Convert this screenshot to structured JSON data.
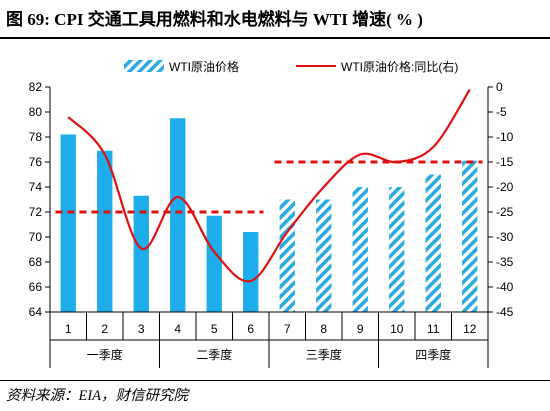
{
  "header": {
    "title": "图 69: CPI 交通工具用燃料和水电燃料与 WTI 增速( % )"
  },
  "footer": {
    "source": "资料来源：EIA，财信研究院"
  },
  "colors": {
    "bar_solid": "#1CADEA",
    "bar_hatch": "#29ABE2",
    "line": "#E01010",
    "dashed": "#E01010",
    "axis": "#000000"
  },
  "chart_data": {
    "type": "bar",
    "categories": [
      "1",
      "2",
      "3",
      "4",
      "5",
      "6",
      "7",
      "8",
      "9",
      "10",
      "11",
      "12"
    ],
    "groups": [
      {
        "label": "一季度",
        "from": 1,
        "to": 3
      },
      {
        "label": "二季度",
        "from": 4,
        "to": 6
      },
      {
        "label": "三季度",
        "from": 7,
        "to": 9
      },
      {
        "label": "四季度",
        "from": 10,
        "to": 12
      }
    ],
    "series": [
      {
        "name": "WTI原油价格",
        "type": "bar",
        "axis": "left",
        "values": [
          78.2,
          76.9,
          73.3,
          79.5,
          71.7,
          70.4,
          73.0,
          73.0,
          74.0,
          74.0,
          75.0,
          76.1
        ],
        "hatched_from_index": 6
      },
      {
        "name": "WTI原油价格:同比(右)",
        "type": "line",
        "axis": "right",
        "values": [
          -6.0,
          -13.5,
          -32.3,
          -22.0,
          -33.0,
          -38.8,
          -29.0,
          -20.0,
          -13.5,
          -15.0,
          -12.0,
          -0.5
        ]
      }
    ],
    "reference_lines": [
      {
        "axis": "right",
        "value": -25,
        "from": 1,
        "to": 6
      },
      {
        "axis": "right",
        "value": -15,
        "from": 7,
        "to": 12
      }
    ],
    "y_left": {
      "min": 64,
      "max": 82,
      "step": 2,
      "ticks": [
        "64",
        "66",
        "68",
        "70",
        "72",
        "74",
        "76",
        "78",
        "80",
        "82"
      ]
    },
    "y_right": {
      "min": -45,
      "max": 0,
      "step": 5,
      "ticks": [
        "-45",
        "-40",
        "-35",
        "-30",
        "-25",
        "-20",
        "-15",
        "-10",
        "-5",
        "0"
      ]
    },
    "legend": {
      "position": "top"
    },
    "grid": false
  }
}
